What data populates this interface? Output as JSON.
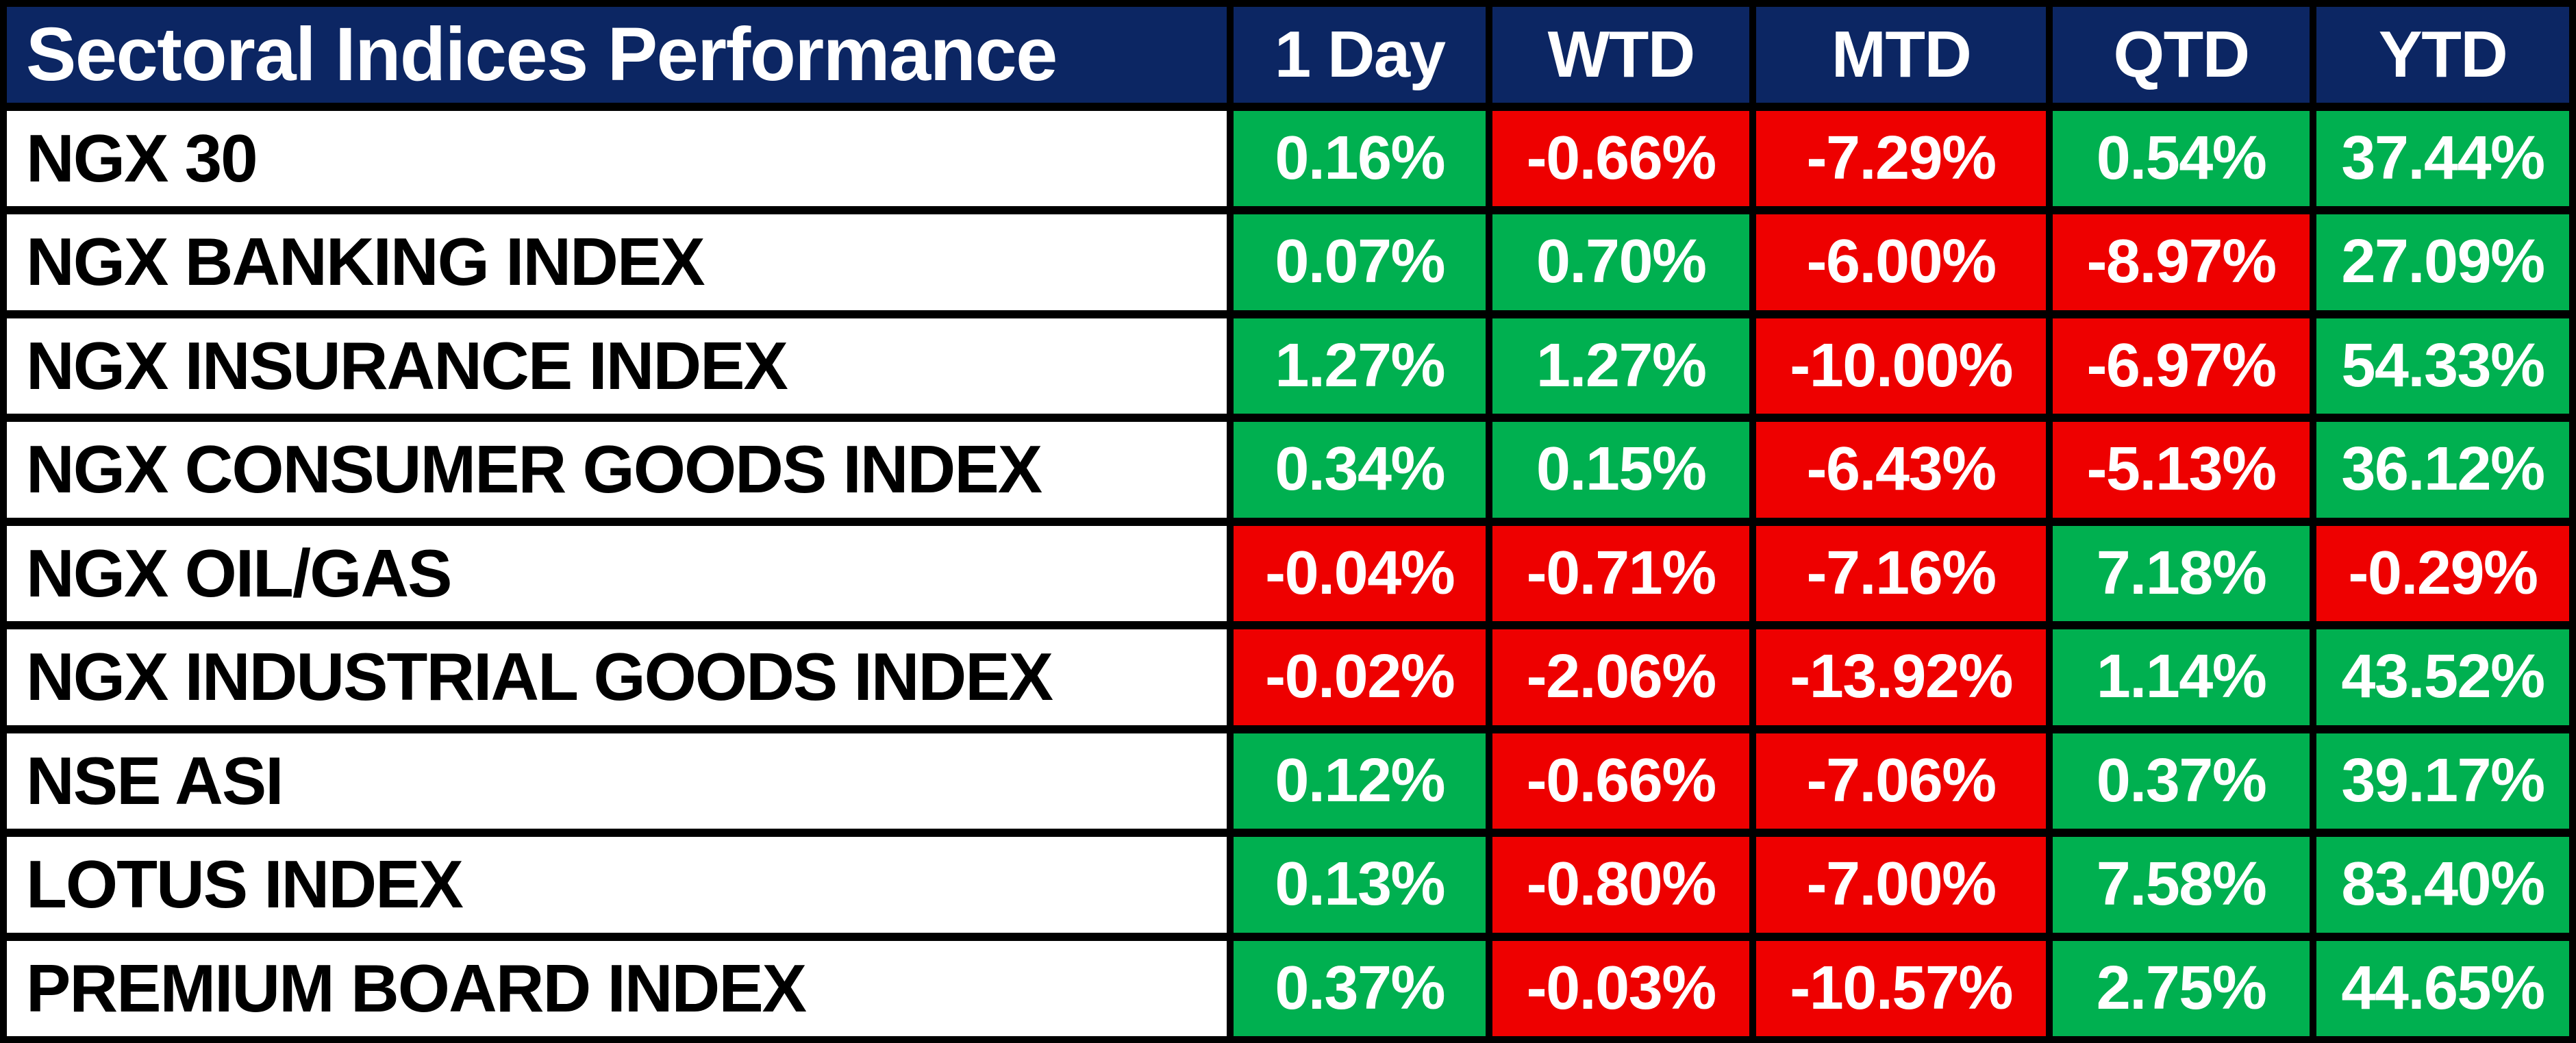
{
  "title": "Sectoral Indices Performance",
  "columns": [
    "1 Day",
    "WTD",
    "MTD",
    "QTD",
    "YTD"
  ],
  "colors": {
    "header_bg": "#0c2663",
    "header_text": "#ffffff",
    "label_bg": "#ffffff",
    "label_text": "#000000",
    "positive_bg": "#00b050",
    "negative_bg": "#ee0000",
    "value_text": "#ffffff",
    "border": "#000000"
  },
  "rows": [
    {
      "label": "NGX 30",
      "values": [
        "0.16%",
        "-0.66%",
        "-7.29%",
        "0.54%",
        "37.44%"
      ]
    },
    {
      "label": "NGX BANKING INDEX",
      "values": [
        "0.07%",
        "0.70%",
        "-6.00%",
        "-8.97%",
        "27.09%"
      ]
    },
    {
      "label": "NGX INSURANCE INDEX",
      "values": [
        "1.27%",
        "1.27%",
        "-10.00%",
        "-6.97%",
        "54.33%"
      ]
    },
    {
      "label": "NGX CONSUMER GOODS INDEX",
      "values": [
        "0.34%",
        "0.15%",
        "-6.43%",
        "-5.13%",
        "36.12%"
      ]
    },
    {
      "label": "NGX OIL/GAS",
      "values": [
        "-0.04%",
        "-0.71%",
        "-7.16%",
        "7.18%",
        "-0.29%"
      ]
    },
    {
      "label": "NGX INDUSTRIAL GOODS INDEX",
      "values": [
        "-0.02%",
        "-2.06%",
        "-13.92%",
        "1.14%",
        "43.52%"
      ]
    },
    {
      "label": "NSE ASI",
      "values": [
        "0.12%",
        "-0.66%",
        "-7.06%",
        "0.37%",
        "39.17%"
      ]
    },
    {
      "label": "LOTUS INDEX",
      "values": [
        "0.13%",
        "-0.80%",
        "-7.00%",
        "7.58%",
        "83.40%"
      ]
    },
    {
      "label": "PREMIUM BOARD INDEX",
      "values": [
        "0.37%",
        "-0.03%",
        "-10.57%",
        "2.75%",
        "44.65%"
      ]
    }
  ],
  "chart_data": {
    "type": "table",
    "title": "Sectoral Indices Performance",
    "unit": "%",
    "categories": [
      "NGX 30",
      "NGX BANKING INDEX",
      "NGX INSURANCE INDEX",
      "NGX CONSUMER GOODS INDEX",
      "NGX OIL/GAS",
      "NGX INDUSTRIAL GOODS INDEX",
      "NSE ASI",
      "LOTUS INDEX",
      "PREMIUM BOARD INDEX"
    ],
    "series": [
      {
        "name": "1 Day",
        "values": [
          0.16,
          0.07,
          1.27,
          0.34,
          -0.04,
          -0.02,
          0.12,
          0.13,
          0.37
        ]
      },
      {
        "name": "WTD",
        "values": [
          -0.66,
          0.7,
          1.27,
          0.15,
          -0.71,
          -2.06,
          -0.66,
          -0.8,
          -0.03
        ]
      },
      {
        "name": "MTD",
        "values": [
          -7.29,
          -6.0,
          -10.0,
          -6.43,
          -7.16,
          -13.92,
          -7.06,
          -7.0,
          -10.57
        ]
      },
      {
        "name": "QTD",
        "values": [
          0.54,
          -8.97,
          -6.97,
          -5.13,
          7.18,
          1.14,
          0.37,
          7.58,
          2.75
        ]
      },
      {
        "name": "YTD",
        "values": [
          37.44,
          27.09,
          54.33,
          36.12,
          -0.29,
          43.52,
          39.17,
          83.4,
          44.65
        ]
      }
    ],
    "layout_hints": {
      "cell_color_rule": "positive values on green #00b050, negative values on red #ee0000",
      "header_style": "dark navy #0c2663 with white bold text",
      "grid": "thick black borders between all cells"
    }
  }
}
